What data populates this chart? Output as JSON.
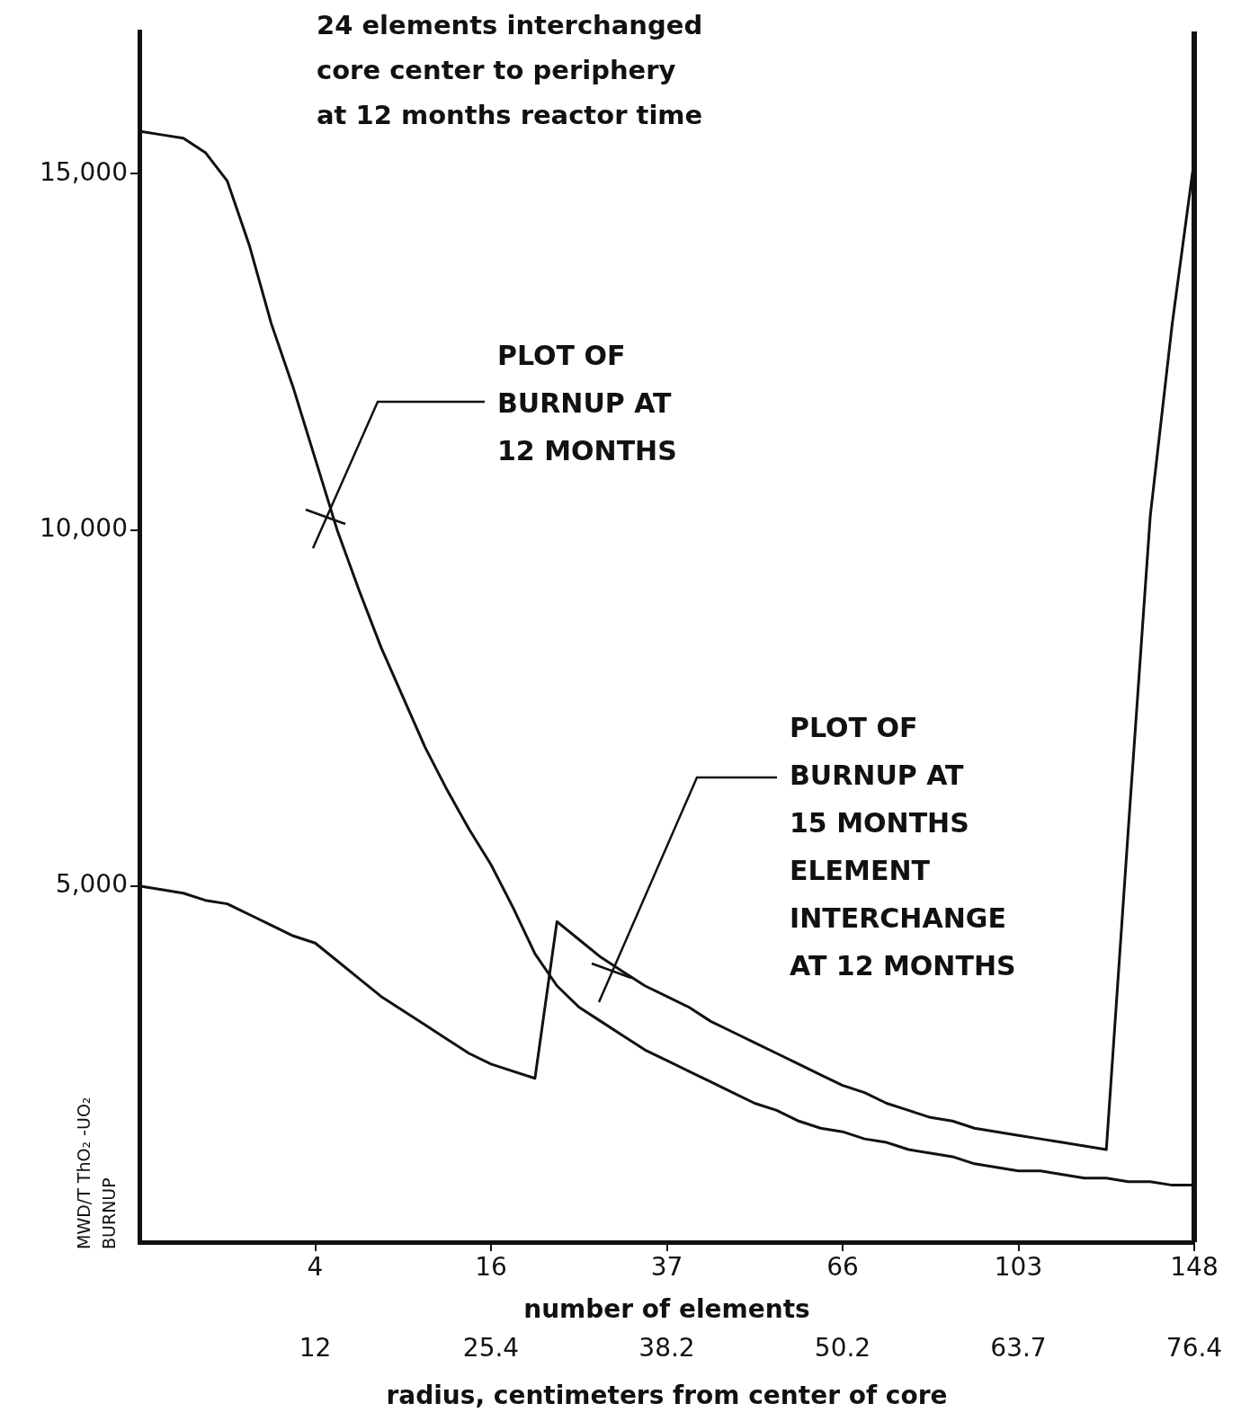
{
  "chart_data": {
    "type": "line",
    "title": "24 elements interchanged\ncore center to periphery\nat 12 months reactor time",
    "ylabel": "MWD/T ThO₂ -UO₂\nBURNUP",
    "xlabel": "number of elements",
    "categories": [
      null,
      null,
      null,
      null,
      null,
      null,
      null,
      null,
      "4",
      null,
      null,
      null,
      null,
      null,
      null,
      null,
      "16",
      null,
      null,
      null,
      null,
      null,
      null,
      null,
      "37",
      null,
      null,
      null,
      null,
      null,
      null,
      null,
      "66",
      null,
      null,
      null,
      null,
      null,
      null,
      null,
      "103",
      null,
      null,
      null,
      null,
      null,
      null,
      null,
      "148"
    ],
    "ylim": [
      0,
      17000
    ],
    "yticks": [
      {
        "value": 5000,
        "label": "5,000"
      },
      {
        "value": 10000,
        "label": "10,000"
      },
      {
        "value": 15000,
        "label": "15,000"
      }
    ],
    "series": [
      {
        "color": "#111111",
        "values": [
          15600,
          15550,
          15500,
          15300,
          14900,
          14000,
          12900,
          12000,
          11000,
          10000,
          9150,
          8350,
          7650,
          6950,
          6350,
          5800,
          5300,
          4700,
          4050,
          3600,
          3300,
          3100,
          2900,
          2700,
          2550,
          2400,
          2250,
          2100,
          1950,
          1850,
          1700,
          1600,
          1550,
          1450,
          1400,
          1300,
          1250,
          1200,
          1100,
          1050,
          1000,
          1000,
          950,
          900,
          900,
          850,
          850,
          800,
          800
        ]
      },
      {
        "color": "#111111",
        "values": [
          5000,
          4950,
          4900,
          4800,
          4750,
          4600,
          4450,
          4300,
          4200,
          3950,
          3700,
          3450,
          3250,
          3050,
          2850,
          2650,
          2500,
          2400,
          2300,
          4500,
          4250,
          4000,
          3800,
          3600,
          3450,
          3300,
          3100,
          2950,
          2800,
          2650,
          2500,
          2350,
          2200,
          2100,
          1950,
          1850,
          1750,
          1700,
          1600,
          1550,
          1500,
          1450,
          1400,
          1350,
          1300,
          5800,
          10200,
          12900,
          15200
        ]
      }
    ],
    "annotations": [
      "PLOT OF\nBURNUP AT\n12 MONTHS",
      "PLOT OF\nBURNUP AT\n15 MONTHS\nELEMENT\nINTERCHANGE\nAT 12 MONTHS",
      "12",
      "25.4",
      "38.2",
      "50.2",
      "63.7",
      "76.4",
      "radius, centimeters from center of core"
    ]
  }
}
